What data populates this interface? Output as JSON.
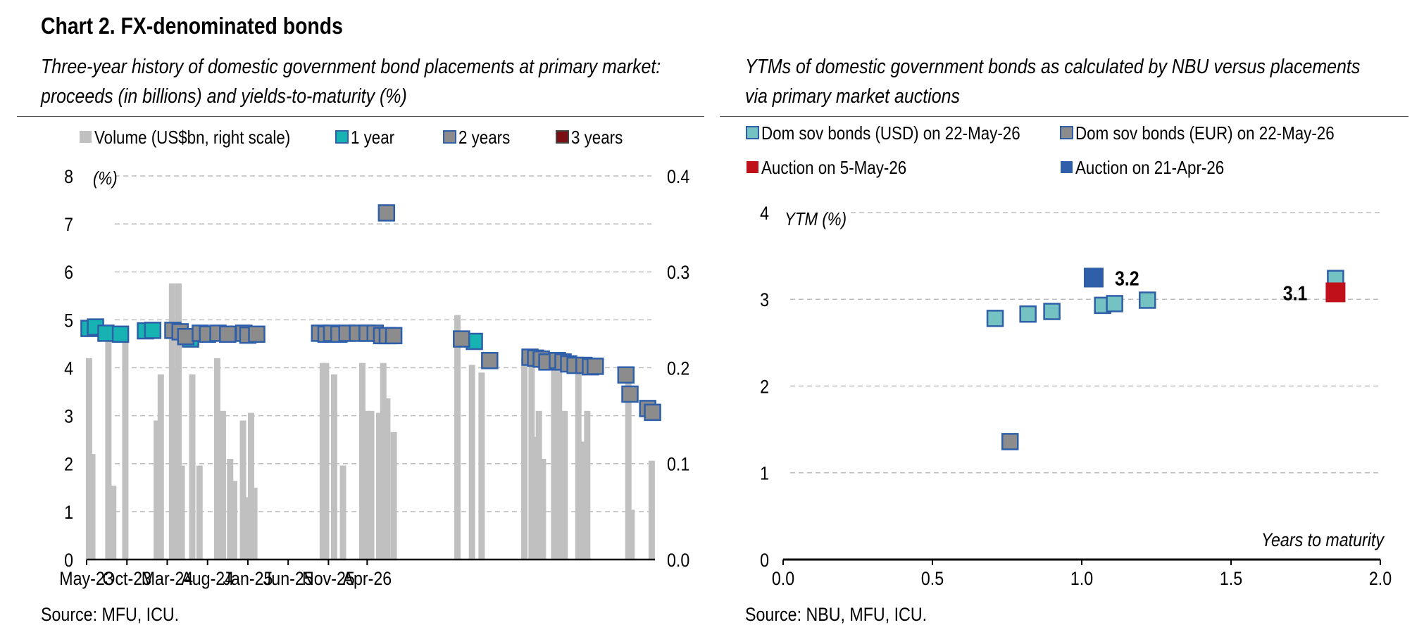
{
  "header": {
    "title": "Chart 2. FX-denominated bonds"
  },
  "left": {
    "subtitle_line1": "Three-year history of domestic government bond placements at primary market:",
    "subtitle_line2": "proceeds (in billions) and yields-to-maturity (%)",
    "source": "Source: MFU, ICU."
  },
  "right": {
    "subtitle_line1": "YTMs of domestic government bonds as calculated by NBU versus placements",
    "subtitle_line2": "via primary market auctions",
    "source": "Source: NBU, MFU, ICU."
  },
  "colors": {
    "volume": "#c0c0c0",
    "one_year": "#17b3b3",
    "two_years": "#8c8c8c",
    "three_years": "#7a0f14",
    "marker_edge": "#2e5fa8",
    "usd": "#74c2c2",
    "auction_may": "#c0101a",
    "auction_apr": "#2e5fa8"
  },
  "chart_data": [
    {
      "type": "bar+scatter",
      "legend": [
        "Volume (US$bn, right scale)",
        "1 year",
        "2 years",
        "3 years"
      ],
      "ylabel": "(%)",
      "ylim": [
        0,
        8
      ],
      "y_ticks": [
        "0",
        "1",
        "2",
        "3",
        "4",
        "5",
        "6",
        "7",
        "8"
      ],
      "y2lim": [
        0,
        0.4
      ],
      "y2_ticks": [
        "0.0",
        "0.1",
        "0.2",
        "0.3",
        "0.4"
      ],
      "x_ticks": [
        "May-23",
        "Oct-23",
        "Mar-24",
        "Aug-24",
        "Jan-25",
        "Jun-25",
        "Nov-25",
        "Apr-26"
      ],
      "grid": true,
      "volume_series": [
        [
          0.3,
          0.21
        ],
        [
          0.7,
          0.11
        ],
        [
          2.7,
          0.24
        ],
        [
          3.3,
          0.077
        ],
        [
          4.8,
          0.24
        ],
        [
          8.7,
          0.145
        ],
        [
          9.2,
          0.193
        ],
        [
          10.6,
          0.288
        ],
        [
          11.0,
          0.2
        ],
        [
          11.4,
          0.288
        ],
        [
          11.8,
          0.098
        ],
        [
          13.1,
          0.193
        ],
        [
          14.0,
          0.098
        ],
        [
          16.2,
          0.21
        ],
        [
          16.9,
          0.155
        ],
        [
          17.8,
          0.105
        ],
        [
          18.3,
          0.082
        ],
        [
          19.4,
          0.145
        ],
        [
          19.9,
          0.065
        ],
        [
          20.4,
          0.153
        ],
        [
          20.8,
          0.075
        ],
        [
          29.3,
          0.205
        ],
        [
          29.7,
          0.205
        ],
        [
          30.7,
          0.193
        ],
        [
          31.8,
          0.098
        ],
        [
          34.2,
          0.205
        ],
        [
          34.8,
          0.155
        ],
        [
          35.3,
          0.155
        ],
        [
          36.3,
          0.153
        ],
        [
          36.8,
          0.205
        ],
        [
          37.3,
          0.168
        ],
        [
          38.1,
          0.133
        ],
        [
          46.0,
          0.255
        ],
        [
          47.8,
          0.203
        ],
        [
          49.0,
          0.195
        ],
        [
          54.3,
          0.21
        ],
        [
          55.2,
          0.21
        ],
        [
          55.7,
          0.128
        ],
        [
          56.1,
          0.155
        ],
        [
          56.6,
          0.105
        ],
        [
          58.0,
          0.205
        ],
        [
          58.6,
          0.205
        ],
        [
          59.3,
          0.155
        ],
        [
          61.0,
          0.205
        ],
        [
          61.6,
          0.123
        ],
        [
          62.1,
          0.155
        ],
        [
          67.2,
          0.19
        ],
        [
          67.6,
          0.052
        ],
        [
          70.1,
          0.103
        ]
      ],
      "yield_series": [
        {
          "name": "1 year",
          "points": [
            [
              0.3,
              4.82
            ],
            [
              1.1,
              4.85
            ],
            [
              2.4,
              4.72
            ],
            [
              4.2,
              4.7
            ],
            [
              7.3,
              4.77
            ],
            [
              8.2,
              4.78
            ],
            [
              12.9,
              4.6
            ],
            [
              48.1,
              4.55
            ]
          ]
        },
        {
          "name": "2 years",
          "points": [
            [
              10.7,
              4.78
            ],
            [
              11.6,
              4.75
            ],
            [
              12.3,
              4.65
            ],
            [
              14.1,
              4.72
            ],
            [
              15.0,
              4.7
            ],
            [
              16.3,
              4.72
            ],
            [
              17.5,
              4.7
            ],
            [
              19.5,
              4.72
            ],
            [
              20.0,
              4.68
            ],
            [
              21.1,
              4.7
            ],
            [
              28.9,
              4.72
            ],
            [
              29.7,
              4.7
            ],
            [
              30.4,
              4.72
            ],
            [
              31.3,
              4.7
            ],
            [
              32.3,
              4.72
            ],
            [
              33.6,
              4.72
            ],
            [
              34.8,
              4.72
            ],
            [
              35.8,
              4.72
            ],
            [
              36.6,
              4.67
            ],
            [
              37.3,
              4.67
            ],
            [
              38.1,
              4.67
            ],
            [
              37.2,
              7.23
            ],
            [
              46.5,
              4.6
            ],
            [
              50.0,
              4.15
            ],
            [
              55.0,
              4.22
            ],
            [
              55.7,
              4.2
            ],
            [
              56.4,
              4.18
            ],
            [
              57.1,
              4.12
            ],
            [
              58.4,
              4.15
            ],
            [
              59.1,
              4.12
            ],
            [
              59.8,
              4.08
            ],
            [
              60.6,
              4.05
            ],
            [
              61.7,
              4.05
            ],
            [
              62.5,
              4.02
            ],
            [
              63.1,
              4.03
            ],
            [
              66.9,
              3.85
            ],
            [
              67.4,
              3.45
            ],
            [
              69.6,
              3.15
            ],
            [
              70.2,
              3.07
            ]
          ]
        },
        {
          "name": "3 years",
          "points": []
        }
      ]
    },
    {
      "type": "scatter",
      "legend": [
        "Dom sov bonds (USD) on 22-May-26",
        "Dom sov bonds (EUR) on 22-May-26",
        "Auction on 5-May-26",
        "Auction on 21-Apr-26"
      ],
      "ylabel": "YTM (%)",
      "xlabel": "Years to maturity",
      "xlim": [
        0,
        2
      ],
      "x_ticks": [
        "0.0",
        "0.5",
        "1.0",
        "1.5",
        "2.0"
      ],
      "ylim": [
        0,
        4
      ],
      "y_ticks": [
        "0",
        "1",
        "2",
        "3",
        "4"
      ],
      "grid": true,
      "series": [
        {
          "name": "Dom sov bonds (USD) on 22-May-26",
          "points": [
            [
              0.71,
              2.78
            ],
            [
              0.82,
              2.83
            ],
            [
              0.9,
              2.86
            ],
            [
              1.07,
              2.93
            ],
            [
              1.11,
              2.95
            ],
            [
              1.22,
              2.99
            ],
            [
              1.85,
              3.24
            ]
          ]
        },
        {
          "name": "Dom sov bonds (EUR) on 22-May-26",
          "points": [
            [
              0.76,
              1.36
            ]
          ]
        },
        {
          "name": "Auction on 5-May-26",
          "points": [
            [
              1.85,
              3.08
            ]
          ]
        },
        {
          "name": "Auction on 21-Apr-26",
          "points": [
            [
              1.04,
              3.25
            ]
          ]
        }
      ],
      "annotations": [
        {
          "text": "3.2",
          "series": "Auction on 21-Apr-26"
        },
        {
          "text": "3.1",
          "series": "Auction on 5-May-26"
        }
      ]
    }
  ]
}
